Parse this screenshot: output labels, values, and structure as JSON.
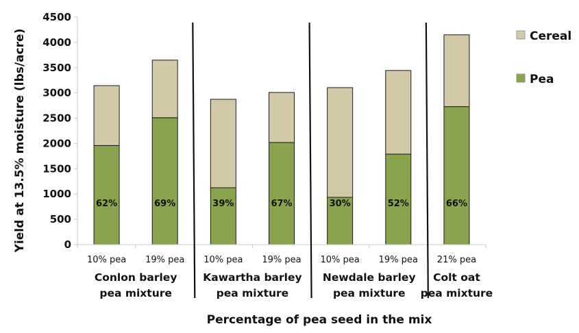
{
  "chart_data": {
    "type": "bar",
    "stacked": true,
    "title": "",
    "xlabel": "Percentage of pea seed in the mix",
    "ylabel": "Yield at 13.5% moisture (lbs/acre)",
    "ylim": [
      0,
      4500
    ],
    "yticks": [
      0,
      500,
      1000,
      1500,
      2000,
      2500,
      3000,
      3500,
      4000,
      4500
    ],
    "ytick_labels": [
      "0",
      "500",
      "1000",
      "1500",
      "2000",
      "2500",
      "3000",
      "3500",
      "4000",
      "4500"
    ],
    "categories": [
      "10% pea",
      "19% pea",
      "10% pea",
      "19% pea",
      "10% pea",
      "19% pea",
      "21% pea"
    ],
    "groups": [
      {
        "label_line1": "Conlon barley",
        "label_line2": "pea mixture",
        "size": 2
      },
      {
        "label_line1": "Kawartha barley",
        "label_line2": "pea mixture",
        "size": 2
      },
      {
        "label_line1": "Newdale barley",
        "label_line2": "pea mixture",
        "size": 2
      },
      {
        "label_line1": "Colt oat",
        "label_line2": "pea mixture",
        "size": 1
      }
    ],
    "series": [
      {
        "name": "Pea",
        "color": "#8aa34d",
        "values": [
          1960,
          2510,
          1125,
          2020,
          935,
          1790,
          2730
        ]
      },
      {
        "name": "Cereal",
        "color": "#d3c9a9",
        "values": [
          1185,
          1140,
          1750,
          990,
          2170,
          1655,
          1420
        ]
      }
    ],
    "data_labels": [
      "62%",
      "69%",
      "39%",
      "67%",
      "30%",
      "52%",
      "66%"
    ],
    "legend": {
      "position": "top-right",
      "entries": [
        "Cereal",
        "Pea"
      ]
    },
    "grid": false
  }
}
